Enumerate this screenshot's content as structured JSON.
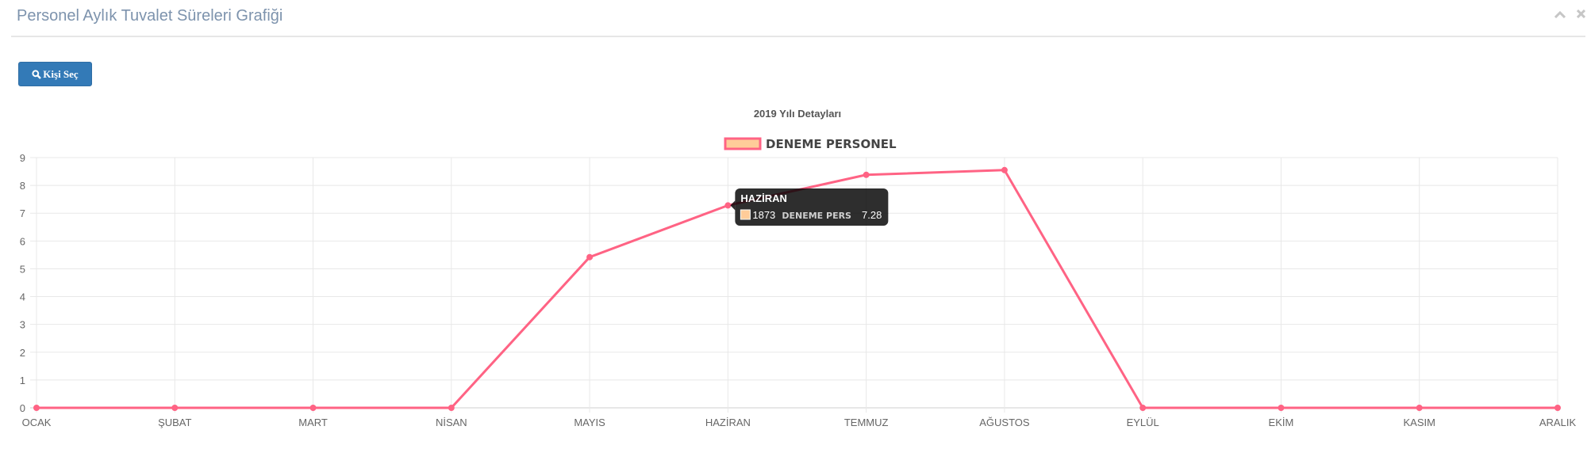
{
  "panel": {
    "title": "Personel Aylık Tuvalet Süreleri Grafiği",
    "collapse_icon": "chevron-up-icon",
    "close_icon": "close-icon"
  },
  "toolbar": {
    "select_person_label": "Kişi Seç",
    "select_person_icon": "search-icon",
    "button_color": "#337ab7"
  },
  "chart_data": {
    "type": "line",
    "title": "2019 Yılı Detayları",
    "categories": [
      "OCAK",
      "ŞUBAT",
      "MART",
      "NİSAN",
      "MAYIS",
      "HAZİRAN",
      "TEMMUZ",
      "AĞUSTOS",
      "EYLÜL",
      "EKİM",
      "KASIM",
      "ARALIK"
    ],
    "series": [
      {
        "name": "DENEME PERSONEL",
        "values": [
          0,
          0,
          0,
          0,
          5.42,
          7.28,
          8.38,
          8.55,
          0,
          0,
          0,
          0
        ],
        "line_color": "#ff6384",
        "fill_color": "#ffcc99"
      }
    ],
    "ylim": [
      0,
      9
    ],
    "yticks": [
      "0",
      "1",
      "2",
      "3",
      "4",
      "5",
      "6",
      "7",
      "8",
      "9"
    ],
    "grid": true,
    "legend_position": "top-center",
    "tooltip": {
      "title": "HAZİRAN",
      "id": "1873",
      "series_label": "DENEME PERS",
      "value": "7.28",
      "category_index": 5
    }
  }
}
